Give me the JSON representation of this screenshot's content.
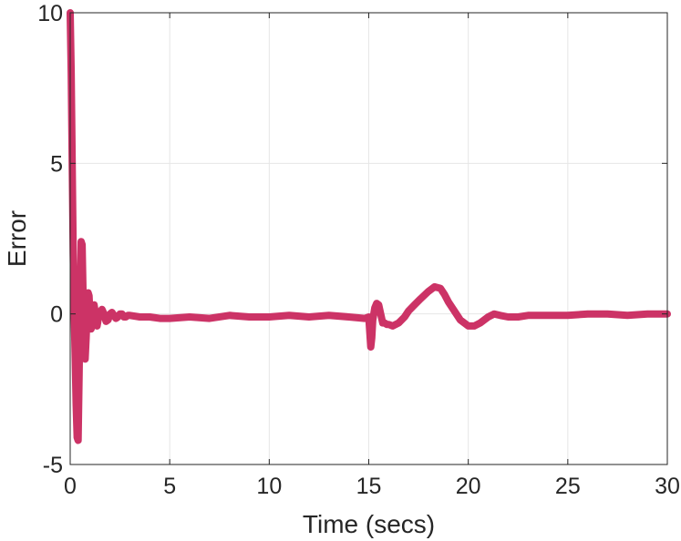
{
  "chart_data": {
    "type": "line",
    "title": "",
    "xlabel": "Time (secs)",
    "ylabel": "Error",
    "xlim": [
      0,
      30
    ],
    "ylim": [
      -5,
      10
    ],
    "xticks": [
      0,
      5,
      10,
      15,
      20,
      25,
      30
    ],
    "yticks": [
      -5,
      0,
      5,
      10
    ],
    "grid": true,
    "series": [
      {
        "color": "#CC3366",
        "x": [
          0.0,
          0.05,
          0.1,
          0.15,
          0.2,
          0.25,
          0.3,
          0.35,
          0.4,
          0.45,
          0.5,
          0.55,
          0.6,
          0.65,
          0.7,
          0.75,
          0.8,
          0.85,
          0.9,
          0.95,
          1.0,
          1.05,
          1.1,
          1.15,
          1.2,
          1.25,
          1.3,
          1.35,
          1.4,
          1.5,
          1.6,
          1.7,
          1.8,
          1.9,
          2.0,
          2.1,
          2.2,
          2.3,
          2.4,
          2.5,
          2.6,
          2.7,
          2.8,
          2.9,
          3.0,
          3.5,
          4.0,
          4.5,
          5.0,
          6.0,
          7.0,
          8.0,
          9.0,
          10.0,
          11.0,
          12.0,
          13.0,
          14.0,
          14.8,
          15.0,
          15.05,
          15.1,
          15.15,
          15.2,
          15.3,
          15.4,
          15.5,
          15.6,
          15.7,
          15.8,
          15.9,
          16.0,
          16.2,
          16.5,
          16.8,
          17.0,
          17.3,
          17.6,
          18.0,
          18.3,
          18.6,
          18.8,
          19.0,
          19.3,
          19.6,
          20.0,
          20.3,
          20.6,
          20.8,
          21.0,
          21.3,
          21.6,
          22.0,
          22.5,
          23.0,
          24.0,
          25.0,
          26.0,
          27.0,
          28.0,
          29.0,
          30.0
        ],
        "y": [
          10.0,
          8.0,
          5.0,
          2.0,
          0.0,
          -1.5,
          -3.0,
          -4.1,
          -4.2,
          -2.0,
          0.5,
          2.4,
          2.3,
          0.5,
          -1.2,
          -1.5,
          -0.8,
          0.1,
          0.7,
          0.6,
          -0.1,
          -0.5,
          -0.4,
          0.1,
          0.3,
          0.1,
          -0.3,
          -0.4,
          -0.2,
          0.05,
          0.15,
          0.0,
          -0.25,
          -0.2,
          0.0,
          0.05,
          -0.05,
          -0.15,
          -0.1,
          0.0,
          0.0,
          -0.1,
          -0.1,
          -0.05,
          -0.05,
          -0.1,
          -0.1,
          -0.15,
          -0.15,
          -0.1,
          -0.15,
          -0.05,
          -0.1,
          -0.1,
          -0.05,
          -0.1,
          -0.05,
          -0.1,
          -0.15,
          -0.1,
          -0.6,
          -1.1,
          -0.8,
          -0.2,
          0.2,
          0.35,
          0.3,
          0.0,
          -0.3,
          -0.3,
          -0.35,
          -0.35,
          -0.4,
          -0.3,
          -0.1,
          0.1,
          0.3,
          0.5,
          0.75,
          0.9,
          0.85,
          0.65,
          0.4,
          0.1,
          -0.2,
          -0.4,
          -0.4,
          -0.3,
          -0.2,
          -0.1,
          0.0,
          -0.05,
          -0.1,
          -0.1,
          -0.05,
          -0.05,
          -0.05,
          0.0,
          0.0,
          -0.05,
          0.0,
          0.0
        ]
      }
    ]
  }
}
